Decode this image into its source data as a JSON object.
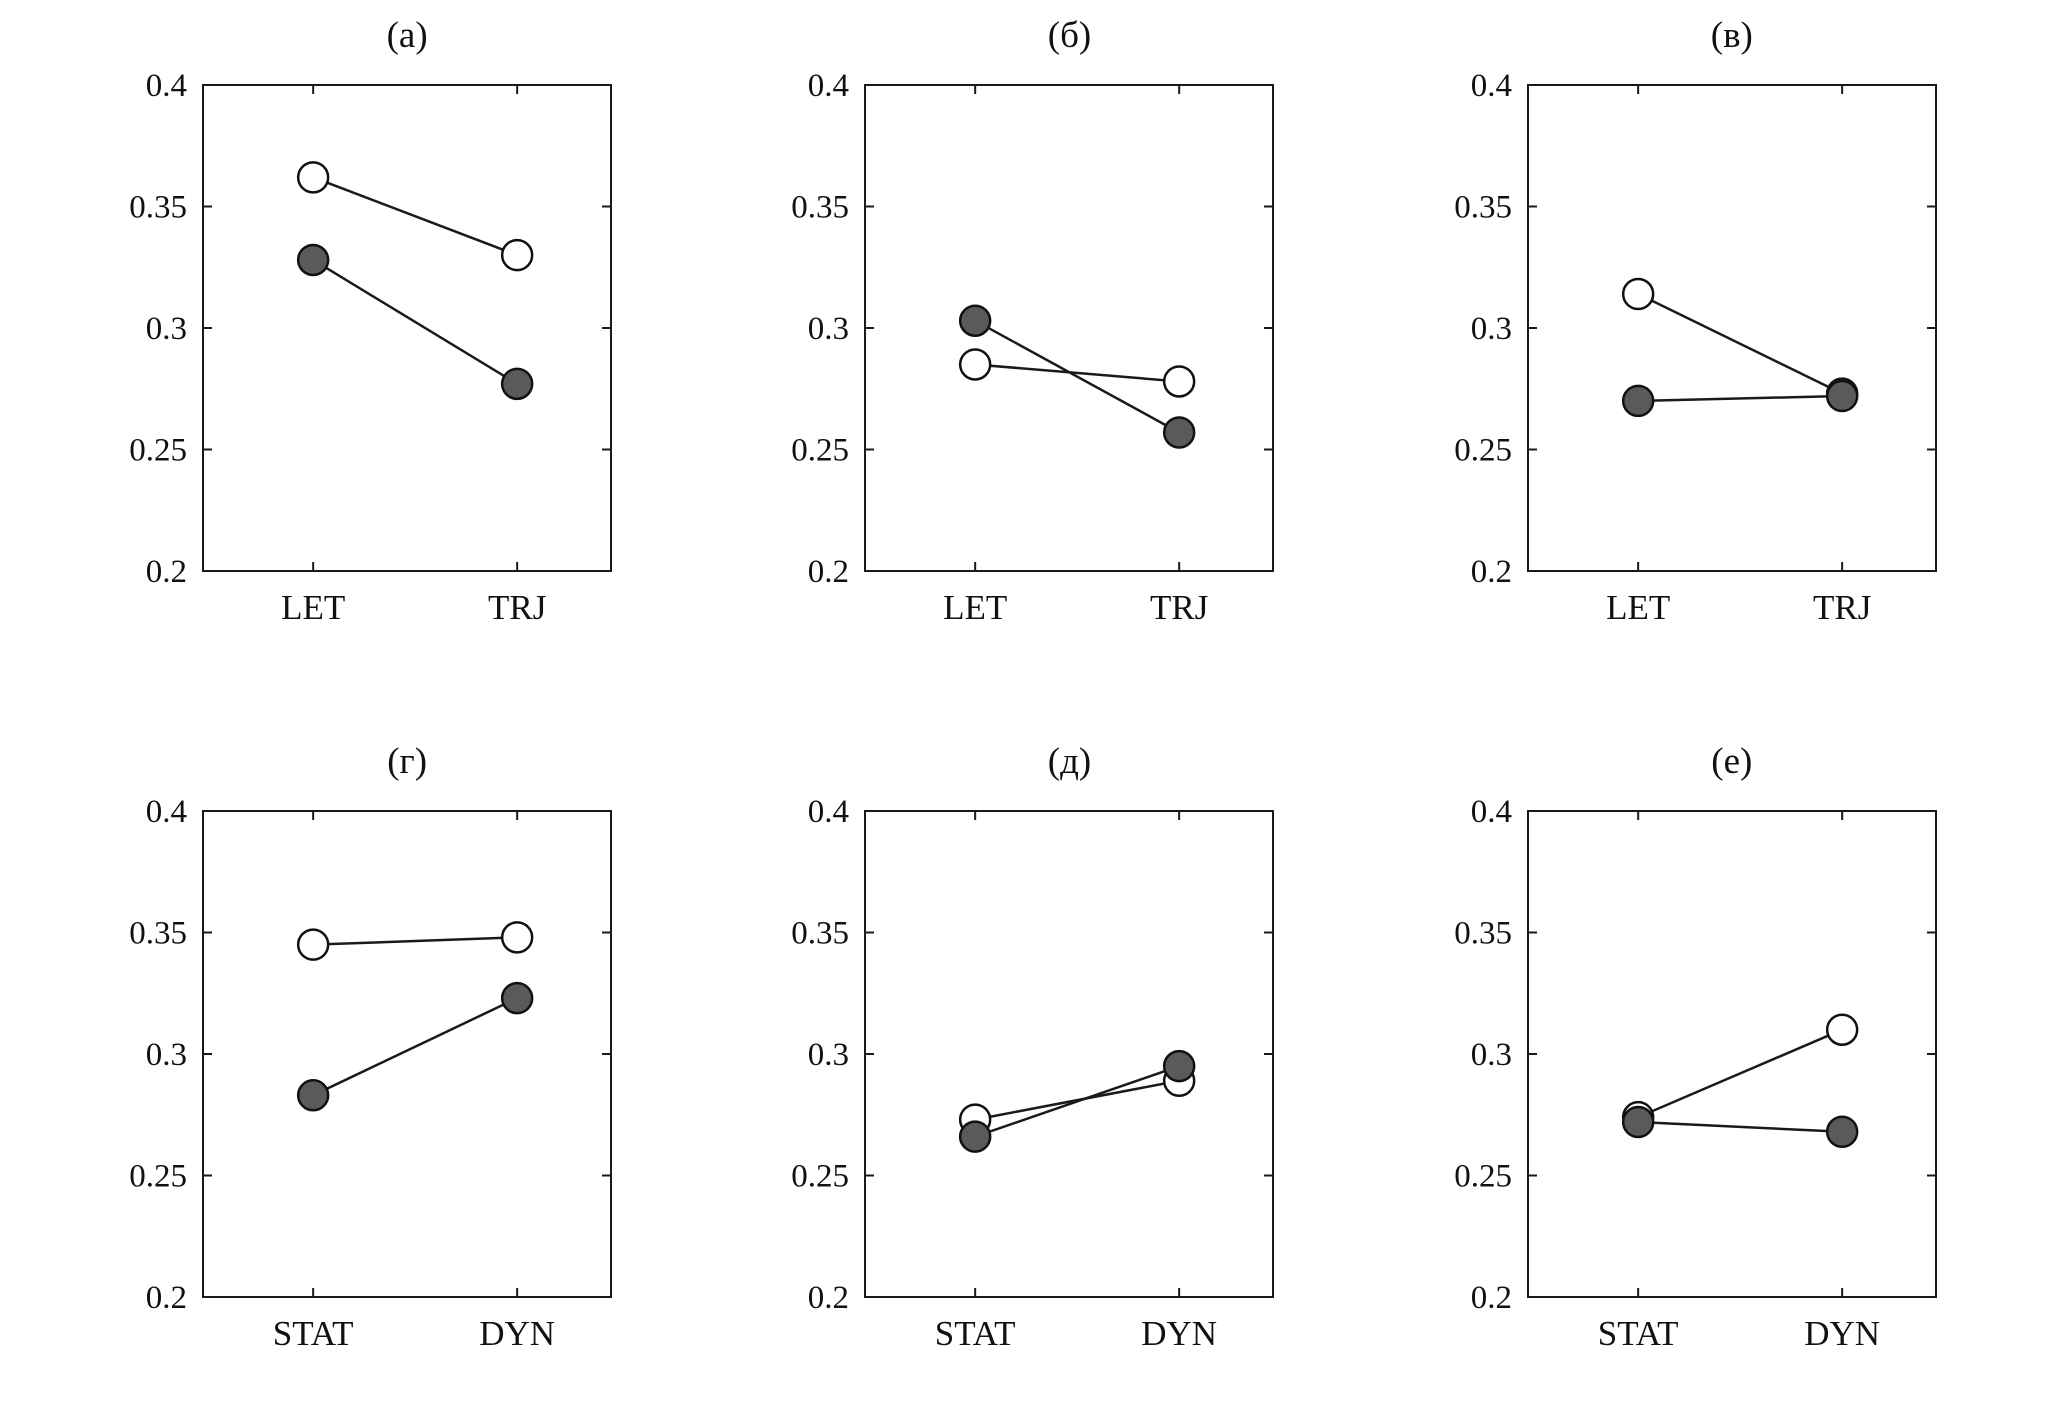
{
  "figure": {
    "background": "#ffffff",
    "axis_color": "#1a1a1a",
    "line_color": "#1a1a1a",
    "open_marker_fill": "#ffffff",
    "filled_marker_fill": "#5a5a5a",
    "marker_stroke": "#111111"
  },
  "chart_data": [
    {
      "type": "line",
      "title": "(а)",
      "categories": [
        "LET",
        "TRJ"
      ],
      "ylim": [
        0.2,
        0.4
      ],
      "yticks": [
        0.2,
        0.25,
        0.3,
        0.35,
        0.4
      ],
      "ytick_labels": [
        "0.2",
        "0.25",
        "0.3",
        "0.35",
        "0.4"
      ],
      "legend": "none",
      "series": [
        {
          "name": "open-circles",
          "marker": "open",
          "values": [
            0.362,
            0.33
          ]
        },
        {
          "name": "filled-circles",
          "marker": "filled",
          "values": [
            0.328,
            0.277
          ]
        }
      ]
    },
    {
      "type": "line",
      "title": "(б)",
      "categories": [
        "LET",
        "TRJ"
      ],
      "ylim": [
        0.2,
        0.4
      ],
      "yticks": [
        0.2,
        0.25,
        0.3,
        0.35,
        0.4
      ],
      "ytick_labels": [
        "0.2",
        "0.25",
        "0.3",
        "0.35",
        "0.4"
      ],
      "legend": "none",
      "series": [
        {
          "name": "open-circles",
          "marker": "open",
          "values": [
            0.285,
            0.278
          ]
        },
        {
          "name": "filled-circles",
          "marker": "filled",
          "values": [
            0.303,
            0.257
          ]
        }
      ]
    },
    {
      "type": "line",
      "title": "(в)",
      "categories": [
        "LET",
        "TRJ"
      ],
      "ylim": [
        0.2,
        0.4
      ],
      "yticks": [
        0.2,
        0.25,
        0.3,
        0.35,
        0.4
      ],
      "ytick_labels": [
        "0.2",
        "0.25",
        "0.3",
        "0.35",
        "0.4"
      ],
      "legend": "none",
      "series": [
        {
          "name": "open-circles",
          "marker": "open",
          "values": [
            0.314,
            0.273
          ]
        },
        {
          "name": "filled-circles",
          "marker": "filled",
          "values": [
            0.27,
            0.272
          ]
        }
      ]
    },
    {
      "type": "line",
      "title": "(г)",
      "categories": [
        "STAT",
        "DYN"
      ],
      "ylim": [
        0.2,
        0.4
      ],
      "yticks": [
        0.2,
        0.25,
        0.3,
        0.35,
        0.4
      ],
      "ytick_labels": [
        "0.2",
        "0.25",
        "0.3",
        "0.35",
        "0.4"
      ],
      "legend": "none",
      "series": [
        {
          "name": "open-circles",
          "marker": "open",
          "values": [
            0.345,
            0.348
          ]
        },
        {
          "name": "filled-circles",
          "marker": "filled",
          "values": [
            0.283,
            0.323
          ]
        }
      ]
    },
    {
      "type": "line",
      "title": "(д)",
      "categories": [
        "STAT",
        "DYN"
      ],
      "ylim": [
        0.2,
        0.4
      ],
      "yticks": [
        0.2,
        0.25,
        0.3,
        0.35,
        0.4
      ],
      "ytick_labels": [
        "0.2",
        "0.25",
        "0.3",
        "0.35",
        "0.4"
      ],
      "legend": "none",
      "series": [
        {
          "name": "open-circles",
          "marker": "open",
          "values": [
            0.273,
            0.289
          ]
        },
        {
          "name": "filled-circles",
          "marker": "filled",
          "values": [
            0.266,
            0.295
          ]
        }
      ]
    },
    {
      "type": "line",
      "title": "(е)",
      "categories": [
        "STAT",
        "DYN"
      ],
      "ylim": [
        0.2,
        0.4
      ],
      "yticks": [
        0.2,
        0.25,
        0.3,
        0.35,
        0.4
      ],
      "ytick_labels": [
        "0.2",
        "0.25",
        "0.3",
        "0.35",
        "0.4"
      ],
      "legend": "none",
      "series": [
        {
          "name": "open-circles",
          "marker": "open",
          "values": [
            0.274,
            0.31
          ]
        },
        {
          "name": "filled-circles",
          "marker": "filled",
          "values": [
            0.272,
            0.268
          ]
        }
      ]
    }
  ]
}
